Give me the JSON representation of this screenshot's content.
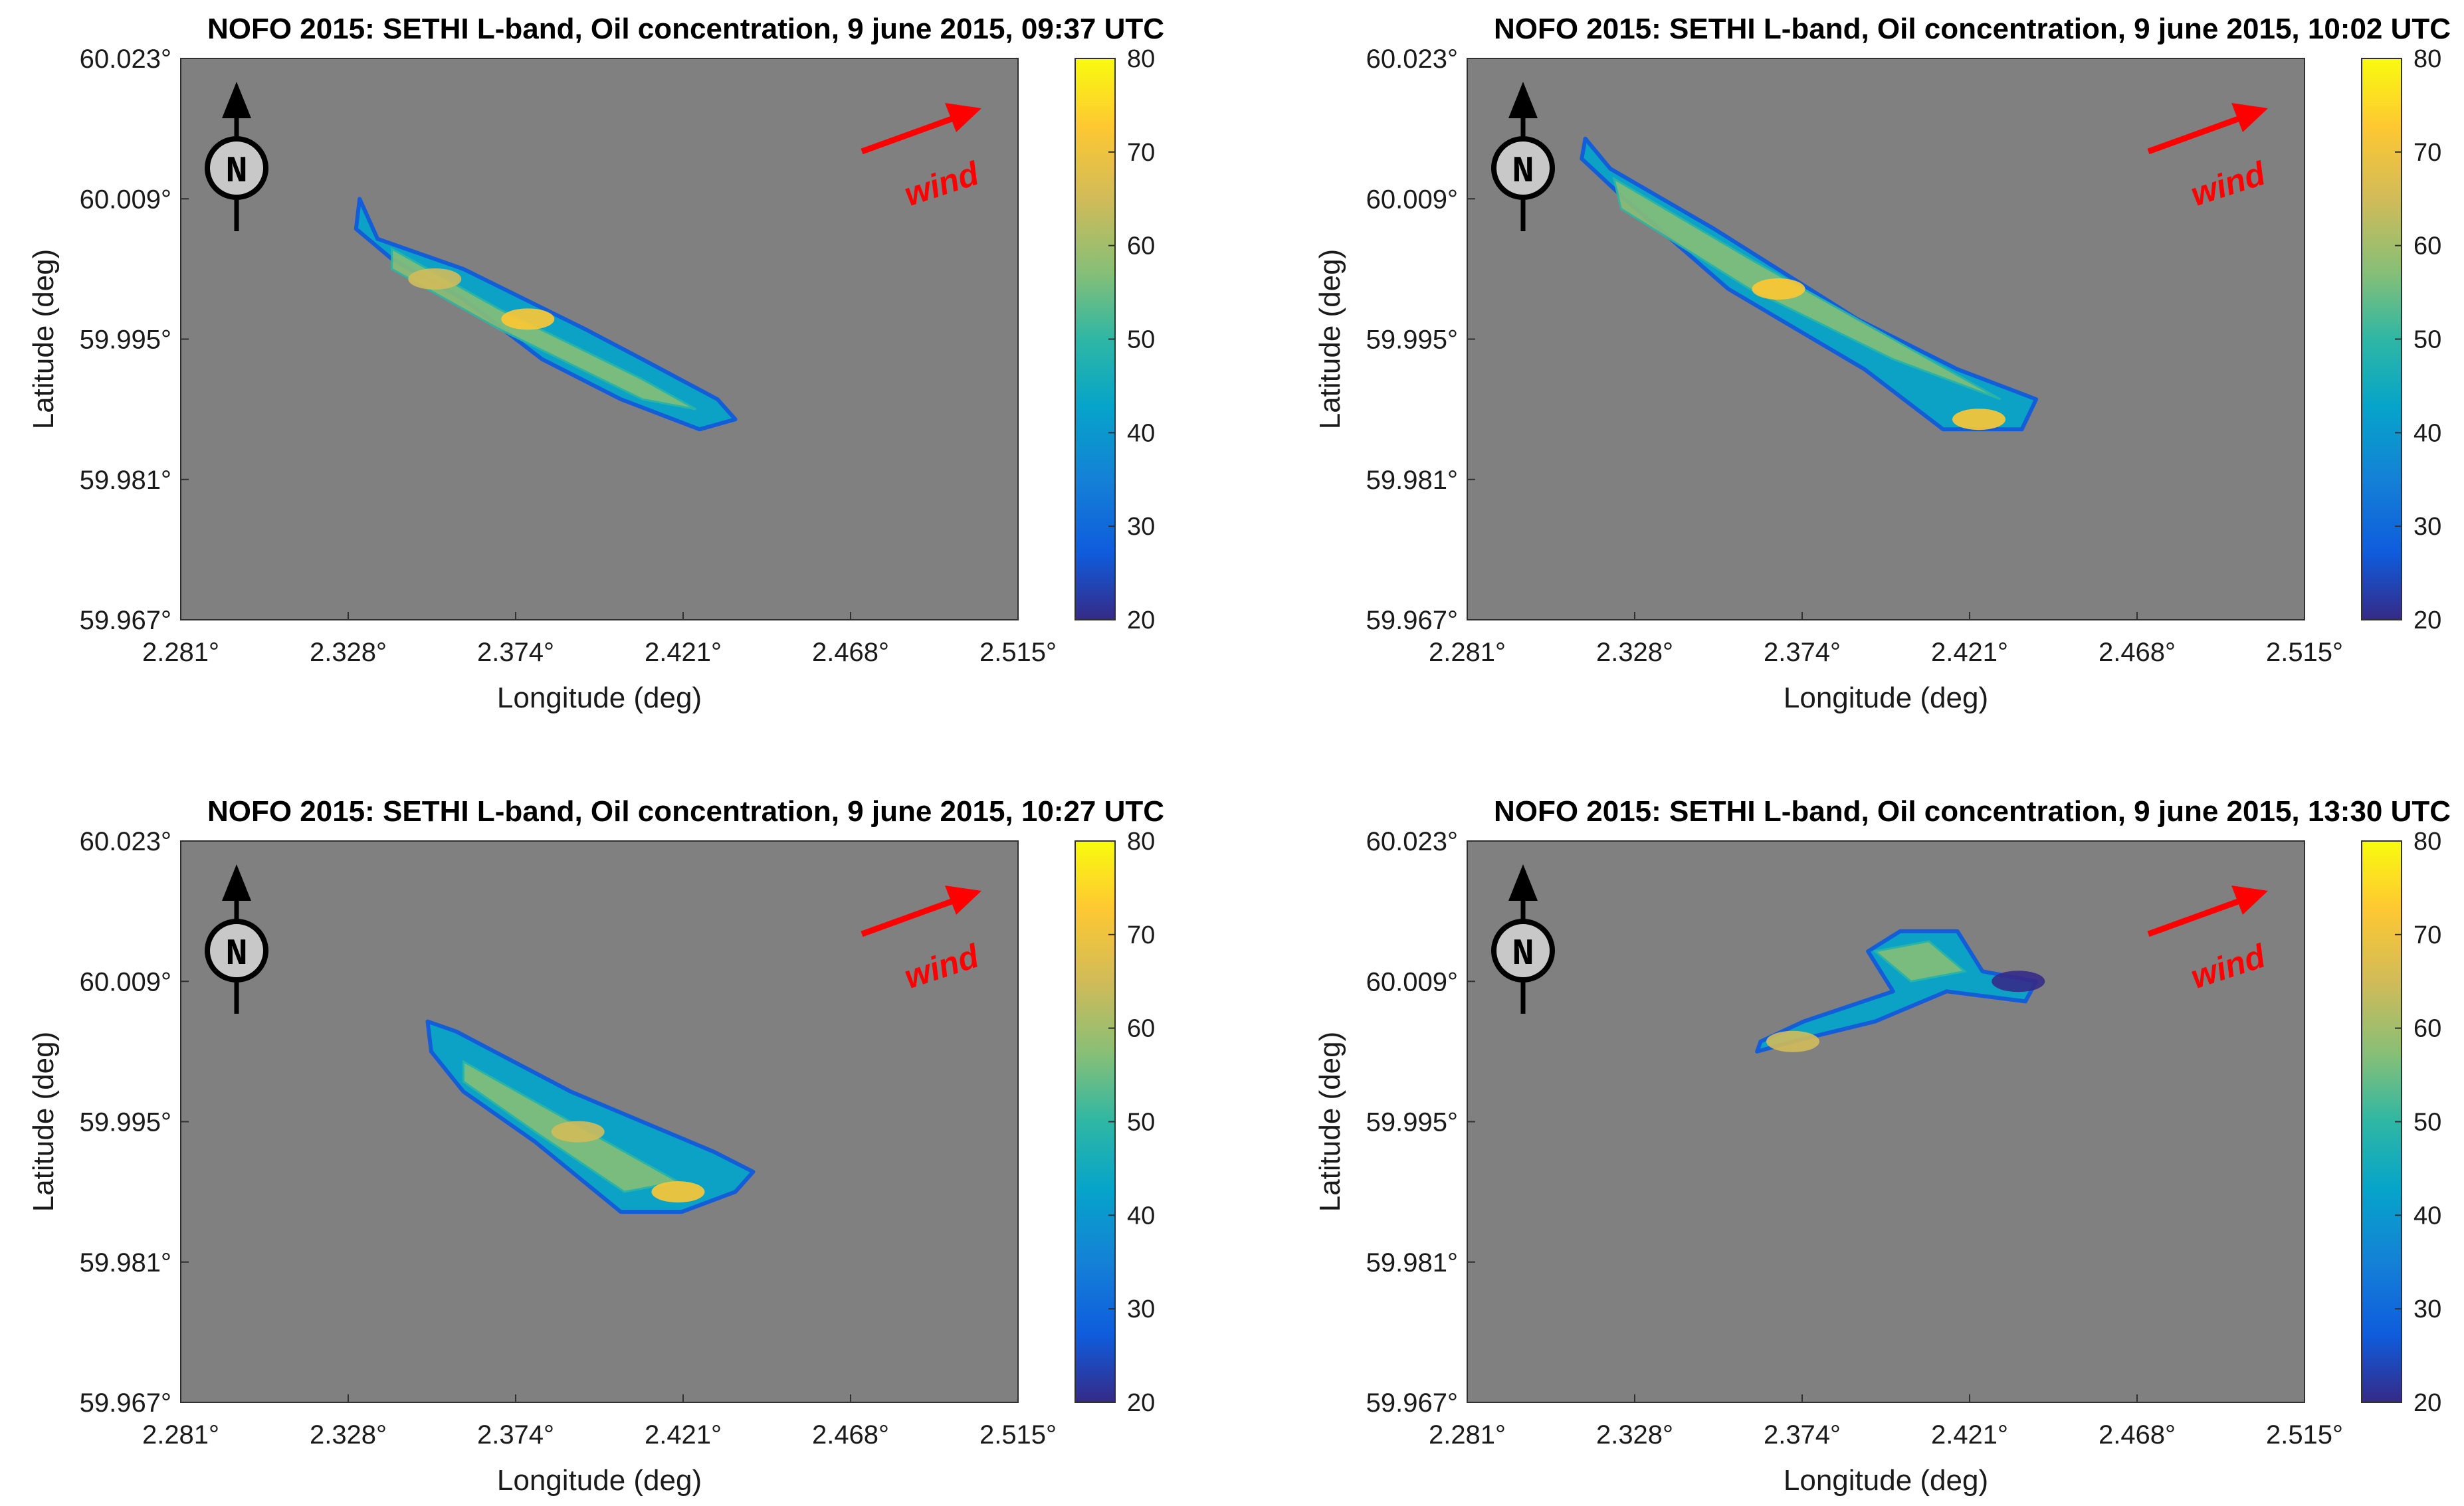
{
  "figure": {
    "common": {
      "xlabel": "Longitude (deg)",
      "ylabel": "Latitude (deg)",
      "x_ticks": [
        "2.281°",
        "2.328°",
        "2.374°",
        "2.421°",
        "2.468°",
        "2.515°"
      ],
      "y_ticks": [
        "60.023°",
        "60.009°",
        "59.995°",
        "59.981°",
        "59.967°"
      ],
      "colorbar_ticks": [
        "80",
        "70",
        "60",
        "50",
        "40",
        "30",
        "20"
      ],
      "wind_label": "wind",
      "north_label": "N",
      "background_color": "#808080",
      "wind_color": "#ff0000",
      "icons": [
        "north-arrow-icon",
        "wind-arrow-icon"
      ]
    }
  },
  "chart_data": [
    {
      "type": "heatmap",
      "title": "NOFO 2015: SETHI L-band, Oil concentration, 9 june 2015, 09:37 UTC",
      "xlabel": "Longitude (deg)",
      "ylabel": "Latitude (deg)",
      "xlim": [
        2.281,
        2.515
      ],
      "ylim": [
        59.967,
        60.023
      ],
      "clim": [
        20,
        80
      ],
      "colormap": "parula",
      "slick_outline": [
        [
          2.331,
          60.009
        ],
        [
          2.336,
          60.005
        ],
        [
          2.36,
          60.002
        ],
        [
          2.394,
          59.996
        ],
        [
          2.41,
          59.993
        ],
        [
          2.431,
          59.989
        ],
        [
          2.436,
          59.987
        ],
        [
          2.426,
          59.986
        ],
        [
          2.404,
          59.989
        ],
        [
          2.382,
          59.993
        ],
        [
          2.36,
          59.999
        ],
        [
          2.34,
          60.003
        ],
        [
          2.33,
          60.006
        ]
      ],
      "slick_core": [
        [
          2.34,
          60.004
        ],
        [
          2.37,
          59.998
        ],
        [
          2.41,
          59.991
        ],
        [
          2.425,
          59.988
        ],
        [
          2.41,
          59.989
        ],
        [
          2.37,
          59.996
        ],
        [
          2.34,
          60.002
        ]
      ],
      "hotspots": [
        {
          "lon": 2.378,
          "lat": 59.997,
          "value": 72
        },
        {
          "lon": 2.352,
          "lat": 60.001,
          "value": 68
        }
      ]
    },
    {
      "type": "heatmap",
      "title": "NOFO 2015: SETHI L-band, Oil concentration, 9 june 2015, 10:02 UTC",
      "xlabel": "Longitude (deg)",
      "ylabel": "Latitude (deg)",
      "xlim": [
        2.281,
        2.515
      ],
      "ylim": [
        59.967,
        60.023
      ],
      "clim": [
        20,
        80
      ],
      "colormap": "parula",
      "slick_outline": [
        [
          2.314,
          60.015
        ],
        [
          2.321,
          60.012
        ],
        [
          2.35,
          60.006
        ],
        [
          2.39,
          59.997
        ],
        [
          2.418,
          59.992
        ],
        [
          2.44,
          59.989
        ],
        [
          2.436,
          59.986
        ],
        [
          2.414,
          59.986
        ],
        [
          2.392,
          59.992
        ],
        [
          2.354,
          60.0
        ],
        [
          2.325,
          60.009
        ],
        [
          2.313,
          60.013
        ]
      ],
      "slick_core": [
        [
          2.322,
          60.011
        ],
        [
          2.36,
          60.003
        ],
        [
          2.4,
          59.995
        ],
        [
          2.43,
          59.989
        ],
        [
          2.4,
          59.993
        ],
        [
          2.36,
          60.0
        ],
        [
          2.324,
          60.008
        ]
      ],
      "hotspots": [
        {
          "lon": 2.368,
          "lat": 60.0,
          "value": 70
        },
        {
          "lon": 2.424,
          "lat": 59.987,
          "value": 75
        }
      ]
    },
    {
      "type": "heatmap",
      "title": "NOFO 2015: SETHI L-band, Oil concentration, 9 june 2015, 10:27 UTC",
      "xlabel": "Longitude (deg)",
      "ylabel": "Latitude (deg)",
      "xlim": [
        2.281,
        2.515
      ],
      "ylim": [
        59.967,
        60.023
      ],
      "clim": [
        20,
        80
      ],
      "colormap": "parula",
      "slick_outline": [
        [
          2.35,
          60.005
        ],
        [
          2.358,
          60.004
        ],
        [
          2.39,
          59.998
        ],
        [
          2.43,
          59.992
        ],
        [
          2.441,
          59.99
        ],
        [
          2.436,
          59.988
        ],
        [
          2.421,
          59.986
        ],
        [
          2.404,
          59.986
        ],
        [
          2.38,
          59.993
        ],
        [
          2.36,
          59.998
        ],
        [
          2.351,
          60.002
        ]
      ],
      "slick_core": [
        [
          2.36,
          60.001
        ],
        [
          2.39,
          59.995
        ],
        [
          2.42,
          59.989
        ],
        [
          2.405,
          59.988
        ],
        [
          2.38,
          59.994
        ],
        [
          2.36,
          59.999
        ]
      ],
      "hotspots": [
        {
          "lon": 2.42,
          "lat": 59.988,
          "value": 72
        },
        {
          "lon": 2.392,
          "lat": 59.994,
          "value": 62
        }
      ]
    },
    {
      "type": "heatmap",
      "title": "NOFO 2015: SETHI L-band, Oil concentration, 9 june 2015, 13:30 UTC",
      "xlabel": "Longitude (deg)",
      "ylabel": "Latitude (deg)",
      "xlim": [
        2.281,
        2.515
      ],
      "ylim": [
        59.967,
        60.023
      ],
      "clim": [
        20,
        80
      ],
      "colormap": "parula",
      "slick_outline": [
        [
          2.363,
          60.003
        ],
        [
          2.375,
          60.005
        ],
        [
          2.4,
          60.008
        ],
        [
          2.393,
          60.012
        ],
        [
          2.402,
          60.014
        ],
        [
          2.418,
          60.014
        ],
        [
          2.425,
          60.01
        ],
        [
          2.44,
          60.009
        ],
        [
          2.437,
          60.007
        ],
        [
          2.415,
          60.008
        ],
        [
          2.395,
          60.005
        ],
        [
          2.372,
          60.003
        ],
        [
          2.362,
          60.002
        ]
      ],
      "slick_core": [
        [
          2.395,
          60.012
        ],
        [
          2.41,
          60.013
        ],
        [
          2.42,
          60.01
        ],
        [
          2.405,
          60.009
        ]
      ],
      "hotspots": [
        {
          "lon": 2.372,
          "lat": 60.003,
          "value": 68
        },
        {
          "lon": 2.435,
          "lat": 60.009,
          "value": 22
        }
      ]
    }
  ]
}
